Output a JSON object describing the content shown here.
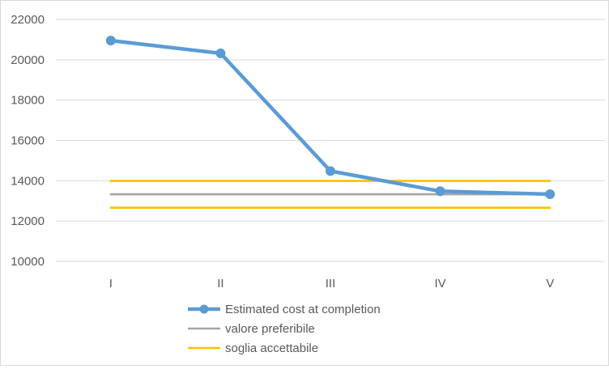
{
  "chart_data": {
    "type": "line",
    "title": "",
    "xlabel": "",
    "ylabel": "",
    "categories": [
      "I",
      "II",
      "III",
      "IV",
      "V"
    ],
    "ylim": [
      10000,
      22000
    ],
    "yticks": [
      10000,
      12000,
      14000,
      16000,
      18000,
      20000,
      22000
    ],
    "grid": true,
    "legend_position": "bottom",
    "series": [
      {
        "name": "Estimated cost at completion",
        "values": [
          20950,
          20320,
          14480,
          13480,
          13330
        ],
        "color": "#5b9bd5",
        "markers": true
      },
      {
        "name": "valore preferibile",
        "values": [
          13330,
          13330,
          13330,
          13330,
          13330
        ],
        "color": "#a5a5a5",
        "markers": false
      },
      {
        "name": "soglia accettabile",
        "values": [
          13990,
          13990,
          13990,
          13990,
          13990
        ],
        "color": "#ffc000",
        "markers": false
      },
      {
        "name": "",
        "values": [
          12660,
          12660,
          12660,
          12660,
          12660
        ],
        "color": "#ffc000",
        "markers": false,
        "legend": false
      }
    ]
  }
}
